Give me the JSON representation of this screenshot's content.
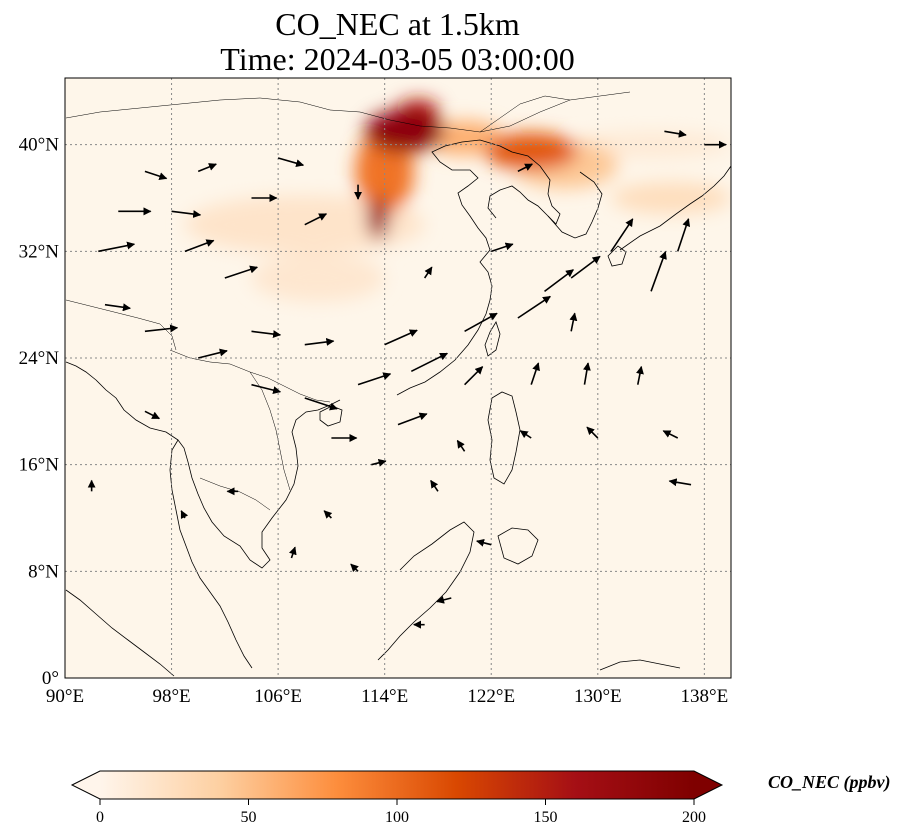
{
  "title": {
    "line1": "CO_NEC at 1.5km",
    "line2": "Time: 2024-03-05 03:00:00"
  },
  "map": {
    "lon_range": [
      90,
      140
    ],
    "lat_range": [
      0,
      45
    ],
    "gridlines": true,
    "lon_ticks": [
      {
        "value": 90,
        "label": "90°E"
      },
      {
        "value": 98,
        "label": "98°E"
      },
      {
        "value": 106,
        "label": "106°E"
      },
      {
        "value": 114,
        "label": "114°E"
      },
      {
        "value": 122,
        "label": "122°E"
      },
      {
        "value": 130,
        "label": "130°E"
      },
      {
        "value": 138,
        "label": "138°E"
      }
    ],
    "lat_ticks": [
      {
        "value": 0,
        "label": "0°"
      },
      {
        "value": 8,
        "label": "8°N"
      },
      {
        "value": 16,
        "label": "16°N"
      },
      {
        "value": 24,
        "label": "24°N"
      },
      {
        "value": 32,
        "label": "32°N"
      },
      {
        "value": 40,
        "label": "40°N"
      }
    ],
    "background_color": "#fef6ea",
    "plumes": [
      {
        "lon": 115.5,
        "lat": 41.0,
        "rlon": 3.0,
        "rlat": 1.6,
        "value": 185
      },
      {
        "lon": 113.5,
        "lat": 34.5,
        "rlon": 0.8,
        "rlat": 1.6,
        "value": 170
      },
      {
        "lon": 116.5,
        "lat": 42.5,
        "rlon": 1.6,
        "rlat": 0.9,
        "value": 150
      },
      {
        "lon": 114.0,
        "lat": 38.0,
        "rlon": 2.2,
        "rlat": 3.2,
        "value": 95
      },
      {
        "lon": 125.0,
        "lat": 39.5,
        "rlon": 3.5,
        "rlat": 1.4,
        "value": 110
      },
      {
        "lon": 120.0,
        "lat": 40.5,
        "rlon": 3.0,
        "rlat": 1.3,
        "value": 60
      },
      {
        "lon": 127.5,
        "lat": 38.5,
        "rlon": 4.0,
        "rlat": 1.8,
        "value": 45
      },
      {
        "lon": 135.5,
        "lat": 36.0,
        "rlon": 4.5,
        "rlat": 1.2,
        "value": 25
      },
      {
        "lon": 108.0,
        "lat": 34.0,
        "rlon": 9.0,
        "rlat": 2.2,
        "value": 18
      },
      {
        "lon": 109.0,
        "lat": 30.0,
        "rlon": 5.0,
        "rlat": 1.8,
        "value": 15
      },
      {
        "lon": 134.0,
        "lat": 40.0,
        "rlon": 6.0,
        "rlat": 1.0,
        "value": 12
      }
    ],
    "wind_vectors": [
      {
        "lon": 92.5,
        "lat": 32,
        "u": 10,
        "v": 2
      },
      {
        "lon": 94,
        "lat": 35,
        "u": 9,
        "v": 0
      },
      {
        "lon": 96,
        "lat": 38,
        "u": 6,
        "v": -2
      },
      {
        "lon": 98,
        "lat": 35,
        "u": 8,
        "v": -1
      },
      {
        "lon": 100,
        "lat": 38,
        "u": 5,
        "v": 2
      },
      {
        "lon": 99,
        "lat": 32,
        "u": 8,
        "v": 3
      },
      {
        "lon": 102,
        "lat": 30,
        "u": 9,
        "v": 3
      },
      {
        "lon": 104,
        "lat": 36,
        "u": 7,
        "v": 0
      },
      {
        "lon": 106,
        "lat": 39,
        "u": 7,
        "v": -2
      },
      {
        "lon": 108,
        "lat": 34,
        "u": 6,
        "v": 3
      },
      {
        "lon": 93,
        "lat": 28,
        "u": 7,
        "v": -1
      },
      {
        "lon": 96,
        "lat": 26,
        "u": 9,
        "v": 1
      },
      {
        "lon": 104,
        "lat": 26,
        "u": 8,
        "v": -1
      },
      {
        "lon": 108,
        "lat": 25,
        "u": 8,
        "v": 1
      },
      {
        "lon": 100,
        "lat": 24,
        "u": 8,
        "v": 2
      },
      {
        "lon": 104,
        "lat": 22,
        "u": 8,
        "v": -2
      },
      {
        "lon": 108,
        "lat": 21,
        "u": 9,
        "v": -3
      },
      {
        "lon": 112,
        "lat": 22,
        "u": 9,
        "v": 3
      },
      {
        "lon": 114,
        "lat": 25,
        "u": 9,
        "v": 4
      },
      {
        "lon": 116,
        "lat": 23,
        "u": 10,
        "v": 5
      },
      {
        "lon": 110,
        "lat": 18,
        "u": 7,
        "v": 0
      },
      {
        "lon": 115,
        "lat": 19,
        "u": 8,
        "v": 3
      },
      {
        "lon": 120,
        "lat": 26,
        "u": 9,
        "v": 5
      },
      {
        "lon": 124,
        "lat": 27,
        "u": 9,
        "v": 6
      },
      {
        "lon": 126,
        "lat": 29,
        "u": 8,
        "v": 6
      },
      {
        "lon": 128,
        "lat": 30,
        "u": 8,
        "v": 6
      },
      {
        "lon": 131,
        "lat": 32,
        "u": 6,
        "v": 9
      },
      {
        "lon": 134,
        "lat": 29,
        "u": 4,
        "v": 11
      },
      {
        "lon": 136,
        "lat": 32,
        "u": 3,
        "v": 9
      },
      {
        "lon": 122,
        "lat": 32,
        "u": 6,
        "v": 2
      },
      {
        "lon": 120,
        "lat": 22,
        "u": 5,
        "v": 5
      },
      {
        "lon": 125,
        "lat": 22,
        "u": 2,
        "v": 6
      },
      {
        "lon": 129,
        "lat": 22,
        "u": 1,
        "v": 6
      },
      {
        "lon": 133,
        "lat": 22,
        "u": 1,
        "v": 5
      },
      {
        "lon": 125,
        "lat": 18,
        "u": -3,
        "v": 2
      },
      {
        "lon": 130,
        "lat": 18,
        "u": -3,
        "v": 3
      },
      {
        "lon": 136,
        "lat": 18,
        "u": -4,
        "v": 2
      },
      {
        "lon": 137,
        "lat": 14.5,
        "u": -6,
        "v": 1
      },
      {
        "lon": 118,
        "lat": 14,
        "u": -2,
        "v": 3
      },
      {
        "lon": 122,
        "lat": 10,
        "u": -4,
        "v": 1
      },
      {
        "lon": 117,
        "lat": 4,
        "u": -3,
        "v": 0
      },
      {
        "lon": 119,
        "lat": 6,
        "u": -4,
        "v": -1
      },
      {
        "lon": 120,
        "lat": 17,
        "u": -2,
        "v": 3
      },
      {
        "lon": 128,
        "lat": 26,
        "u": 1,
        "v": 5
      },
      {
        "lon": 103,
        "lat": 14,
        "u": -3,
        "v": 0
      },
      {
        "lon": 96,
        "lat": 20,
        "u": 4,
        "v": -2
      },
      {
        "lon": 113,
        "lat": 16,
        "u": 4,
        "v": 1
      },
      {
        "lon": 110,
        "lat": 12,
        "u": -2,
        "v": 2
      },
      {
        "lon": 135,
        "lat": 41,
        "u": 6,
        "v": -1
      },
      {
        "lon": 138,
        "lat": 40,
        "u": 6,
        "v": 0
      },
      {
        "lon": 124,
        "lat": 38,
        "u": 4,
        "v": 2
      },
      {
        "lon": 112,
        "lat": 37,
        "u": 0,
        "v": -4
      },
      {
        "lon": 117,
        "lat": 30,
        "u": 2,
        "v": 3
      },
      {
        "lon": 92,
        "lat": 14,
        "u": 0,
        "v": 3
      },
      {
        "lon": 99,
        "lat": 12,
        "u": -1,
        "v": 2
      },
      {
        "lon": 107,
        "lat": 9,
        "u": 1,
        "v": 3
      },
      {
        "lon": 112,
        "lat": 8,
        "u": -2,
        "v": 2
      }
    ]
  },
  "colorbar": {
    "min": 0,
    "max": 200,
    "extend": "both",
    "ticks": [
      {
        "value": 0,
        "label": "0"
      },
      {
        "value": 50,
        "label": "50"
      },
      {
        "value": 100,
        "label": "100"
      },
      {
        "value": 150,
        "label": "150"
      },
      {
        "value": 200,
        "label": "200"
      }
    ],
    "label": "CO_NEC (ppbv)",
    "stops": [
      "#fff5eb",
      "#fdd0a2",
      "#fd8d3c",
      "#d94801",
      "#a50f15",
      "#7f0000"
    ]
  }
}
